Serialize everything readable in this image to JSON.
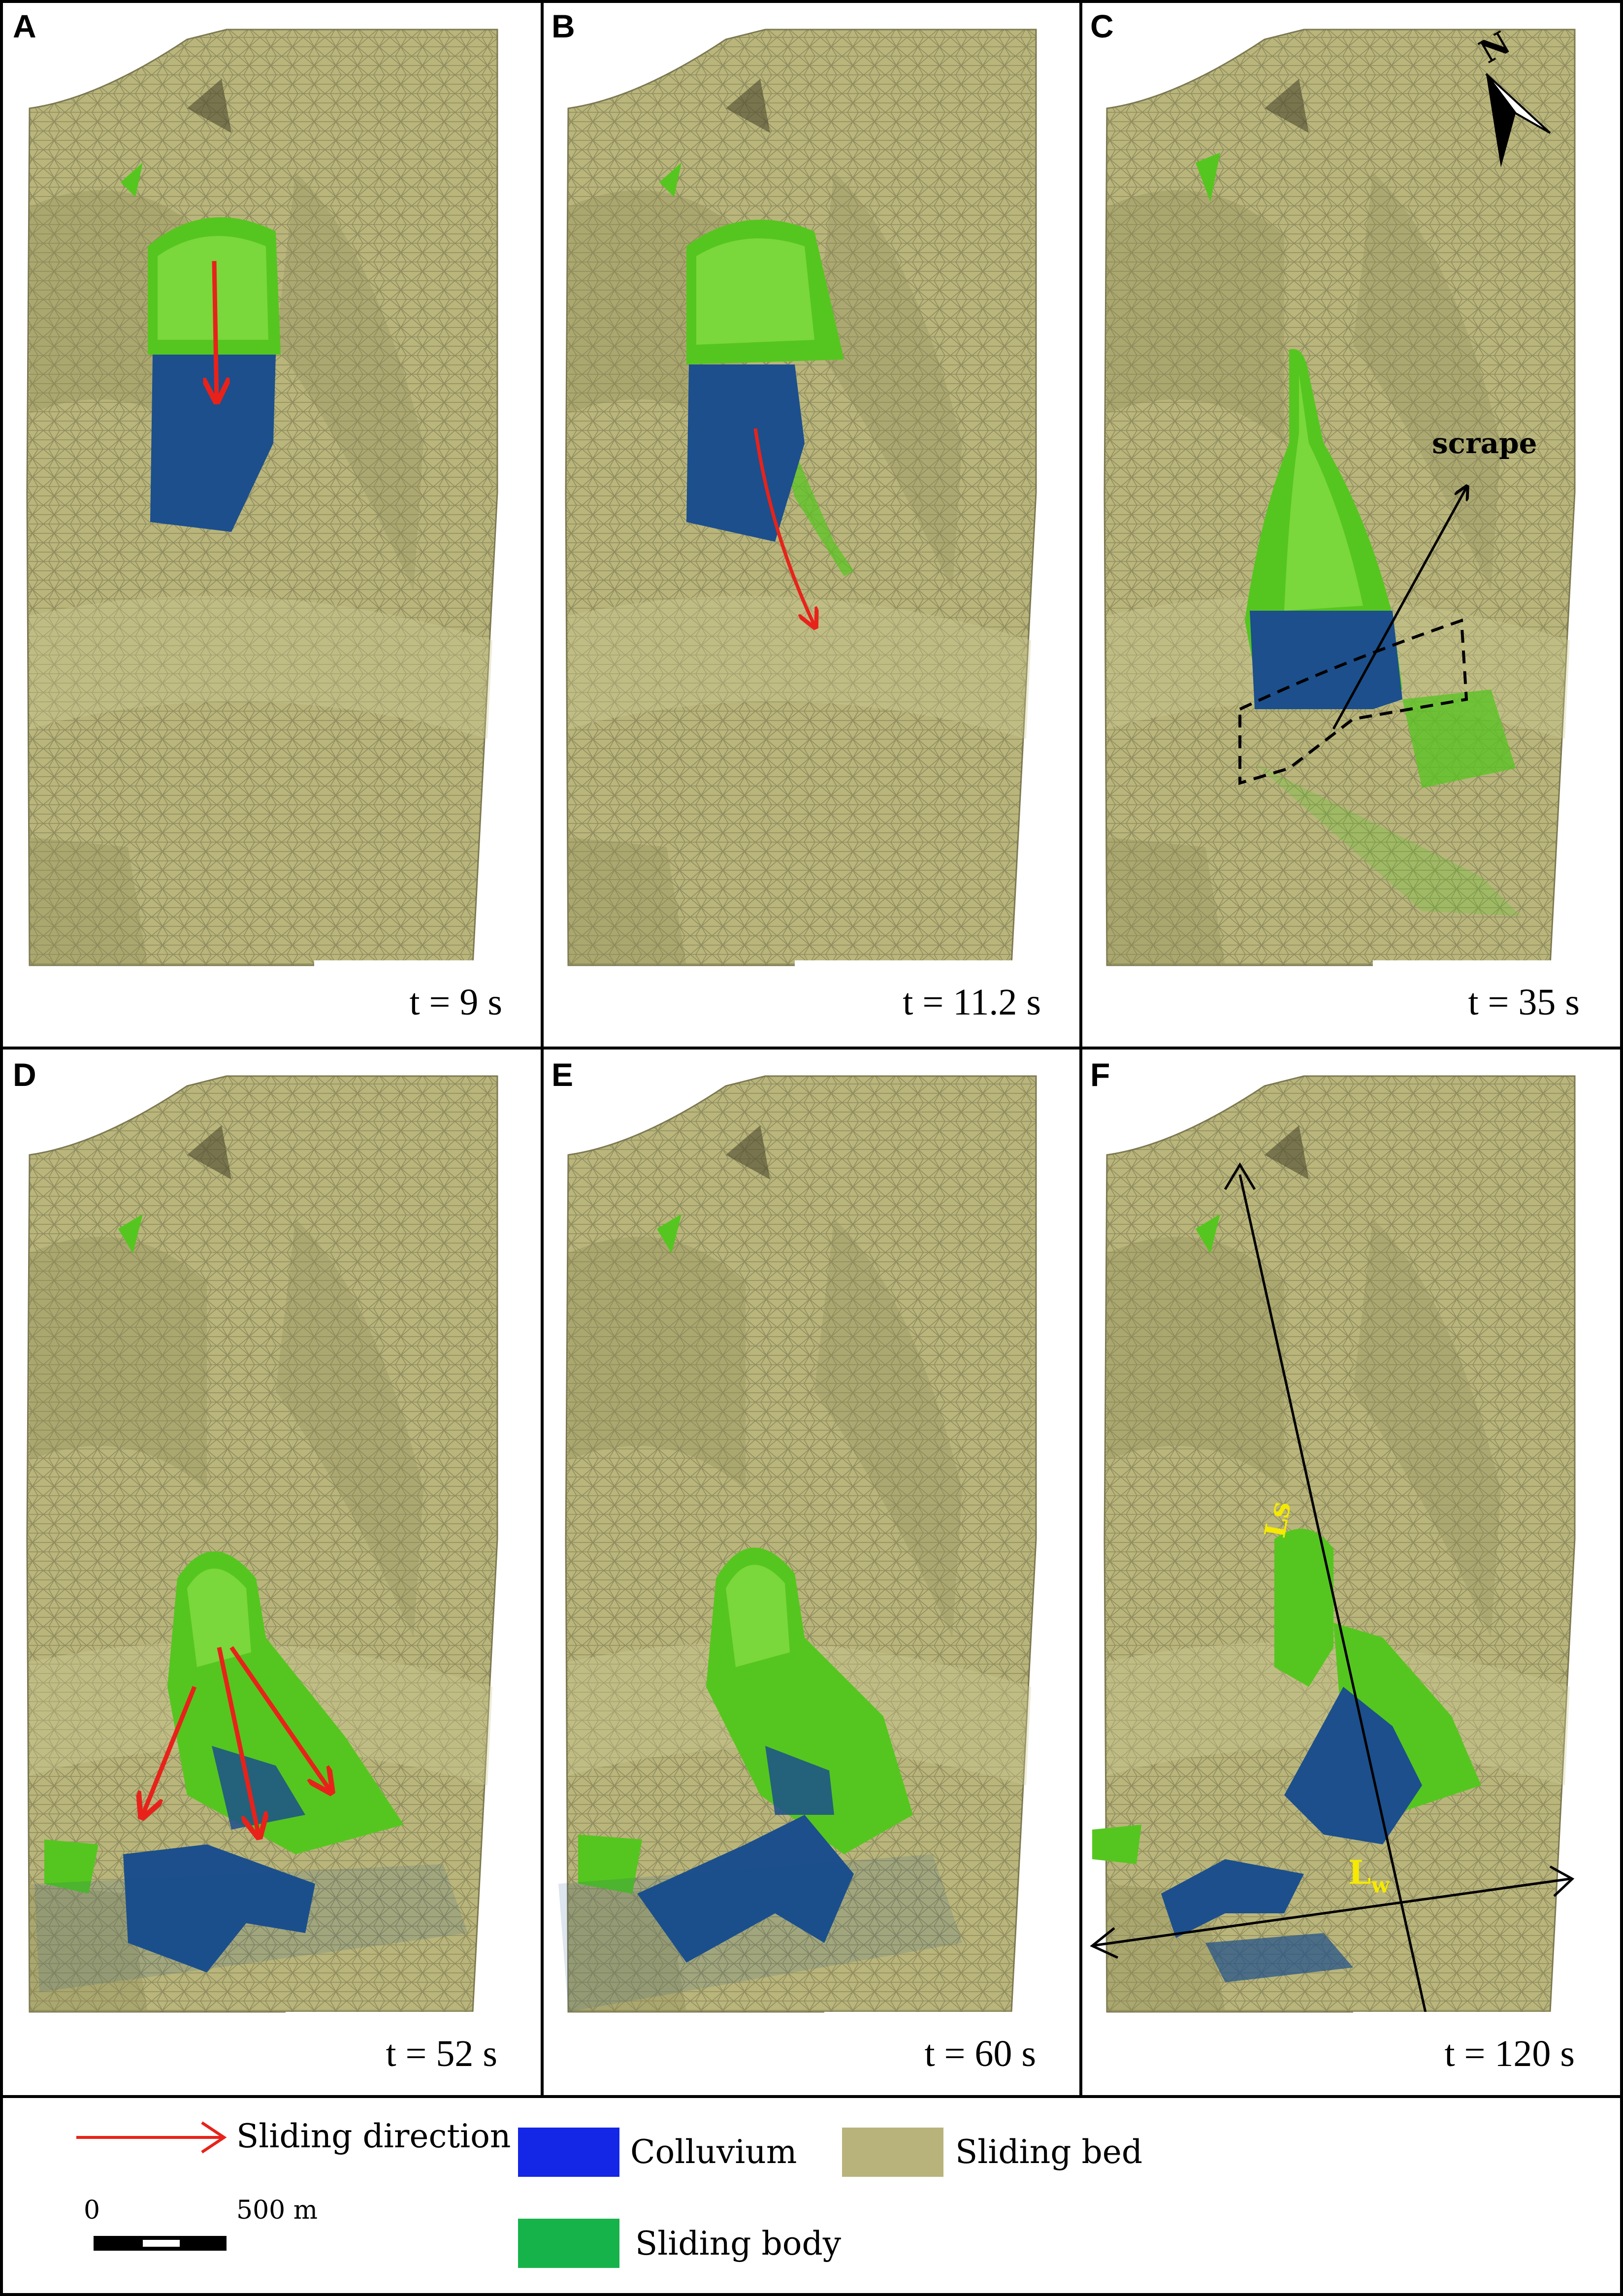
{
  "figure": {
    "panels": [
      {
        "id": "A",
        "time_label": "t = 9 s"
      },
      {
        "id": "B",
        "time_label": "t = 11.2 s"
      },
      {
        "id": "C",
        "time_label": "t = 35 s"
      },
      {
        "id": "D",
        "time_label": "t = 52 s"
      },
      {
        "id": "E",
        "time_label": "t = 60 s"
      },
      {
        "id": "F",
        "time_label": "t = 120 s"
      }
    ],
    "annotations": {
      "scrape": "scrape",
      "north": "N",
      "ls": "Ls",
      "lw_main": "L",
      "lw_sub": "w"
    },
    "legend": {
      "sliding_direction": "Sliding direction",
      "colluvium": "Colluvium",
      "sliding_bed": "Sliding bed",
      "sliding_body": "Sliding body",
      "scale_start": "0",
      "scale_end": "500 m"
    },
    "colors": {
      "bed": "#b9b57b",
      "bed_dark": "#8f8b5a",
      "mesh": "#6f6c48",
      "body": "#55c61f",
      "body_light": "#9fe85a",
      "colluvium": "#1c4f8c",
      "colluvium_legend": "#1426e6",
      "body_legend": "#16b34a",
      "bed_legend": "#b8b37a",
      "arrow_red": "#e8221a",
      "annotation_yellow": "#f5ea00"
    }
  }
}
